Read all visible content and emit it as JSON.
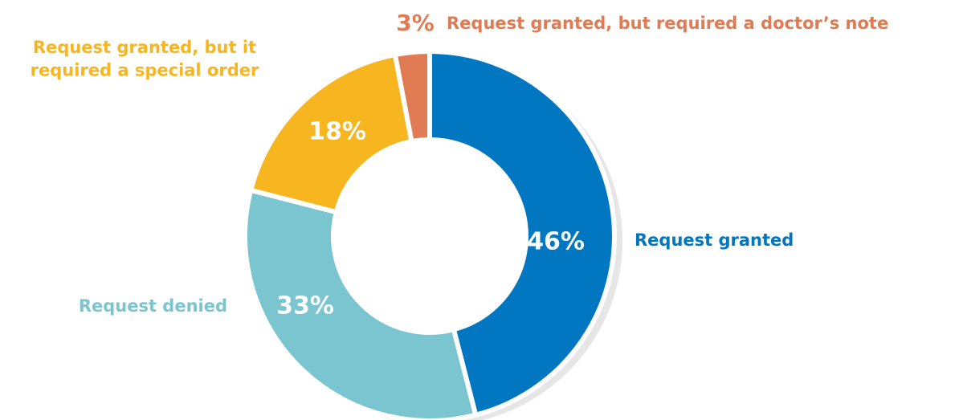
{
  "chart_data": {
    "type": "donut",
    "categories": [
      "Request granted",
      "Request denied",
      "Request granted, but it\nrequired a special order",
      "Request granted, but required a doctor’s note"
    ],
    "values": [
      46,
      33,
      18,
      3
    ],
    "value_labels": [
      "46%",
      "33%",
      "18%",
      "3%"
    ],
    "colors": [
      "#0077c0",
      "#7ac5cf",
      "#f7b51f",
      "#e07b53"
    ]
  }
}
